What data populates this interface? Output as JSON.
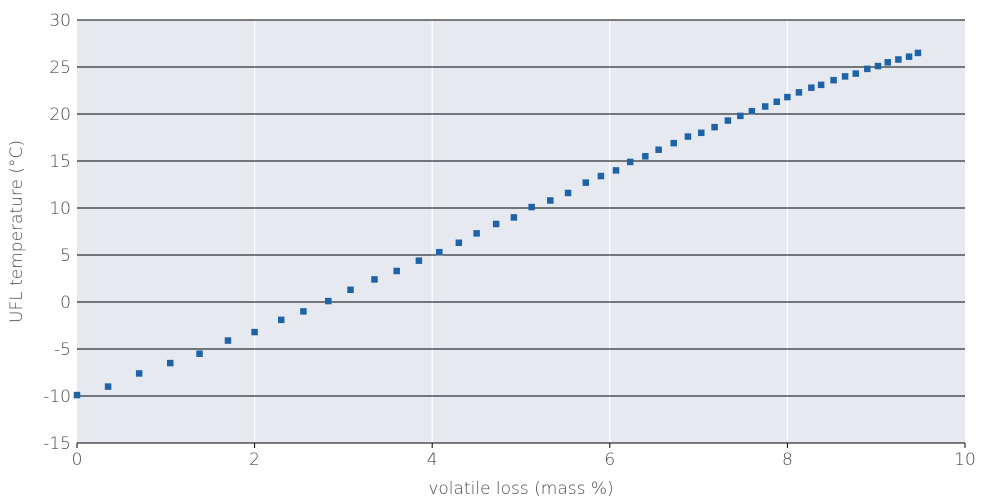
{
  "chart_data": {
    "type": "scatter",
    "title": "",
    "xlabel": "volatile loss (mass %)",
    "ylabel": "UFL temperature (°C)",
    "xlim": [
      0,
      10
    ],
    "ylim": [
      -15,
      30
    ],
    "x_ticks": [
      0,
      2,
      4,
      6,
      8,
      10
    ],
    "y_ticks": [
      -15,
      -10,
      -5,
      0,
      5,
      10,
      15,
      20,
      25,
      30
    ],
    "x_tick_labels": [
      "0",
      "2",
      "4",
      "6",
      "8",
      "10"
    ],
    "y_tick_labels": [
      "-15",
      "-10",
      "-5",
      "0",
      "5",
      "10",
      "15",
      "20",
      "25",
      "30"
    ],
    "grid": "horizontal black lines, vertical white lines",
    "colors": {
      "plot_background": "#e6eaf0",
      "marker": "#1e62a8",
      "h_grid": "#000000",
      "v_grid": "#ffffff"
    },
    "series": [
      {
        "points": [
          [
            0.0,
            -9.9
          ],
          [
            0.35,
            -9.0
          ],
          [
            0.7,
            -7.6
          ],
          [
            1.05,
            -6.5
          ],
          [
            1.38,
            -5.5
          ],
          [
            1.7,
            -4.1
          ],
          [
            2.0,
            -3.2
          ],
          [
            2.3,
            -1.9
          ],
          [
            2.55,
            -1.0
          ],
          [
            2.83,
            0.1
          ],
          [
            3.08,
            1.3
          ],
          [
            3.35,
            2.4
          ],
          [
            3.6,
            3.3
          ],
          [
            3.85,
            4.4
          ],
          [
            4.08,
            5.3
          ],
          [
            4.3,
            6.3
          ],
          [
            4.5,
            7.3
          ],
          [
            4.72,
            8.3
          ],
          [
            4.92,
            9.0
          ],
          [
            5.12,
            10.1
          ],
          [
            5.33,
            10.8
          ],
          [
            5.53,
            11.6
          ],
          [
            5.73,
            12.7
          ],
          [
            5.9,
            13.4
          ],
          [
            6.07,
            14.0
          ],
          [
            6.23,
            14.9
          ],
          [
            6.4,
            15.5
          ],
          [
            6.55,
            16.2
          ],
          [
            6.72,
            16.9
          ],
          [
            6.88,
            17.6
          ],
          [
            7.03,
            18.0
          ],
          [
            7.18,
            18.6
          ],
          [
            7.33,
            19.3
          ],
          [
            7.47,
            19.8
          ],
          [
            7.6,
            20.3
          ],
          [
            7.75,
            20.8
          ],
          [
            7.88,
            21.3
          ],
          [
            8.0,
            21.8
          ],
          [
            8.13,
            22.3
          ],
          [
            8.27,
            22.8
          ],
          [
            8.38,
            23.1
          ],
          [
            8.52,
            23.6
          ],
          [
            8.65,
            24.0
          ],
          [
            8.77,
            24.3
          ],
          [
            8.9,
            24.8
          ],
          [
            9.02,
            25.1
          ],
          [
            9.13,
            25.5
          ],
          [
            9.25,
            25.8
          ],
          [
            9.37,
            26.1
          ],
          [
            9.47,
            26.5
          ]
        ]
      }
    ]
  }
}
